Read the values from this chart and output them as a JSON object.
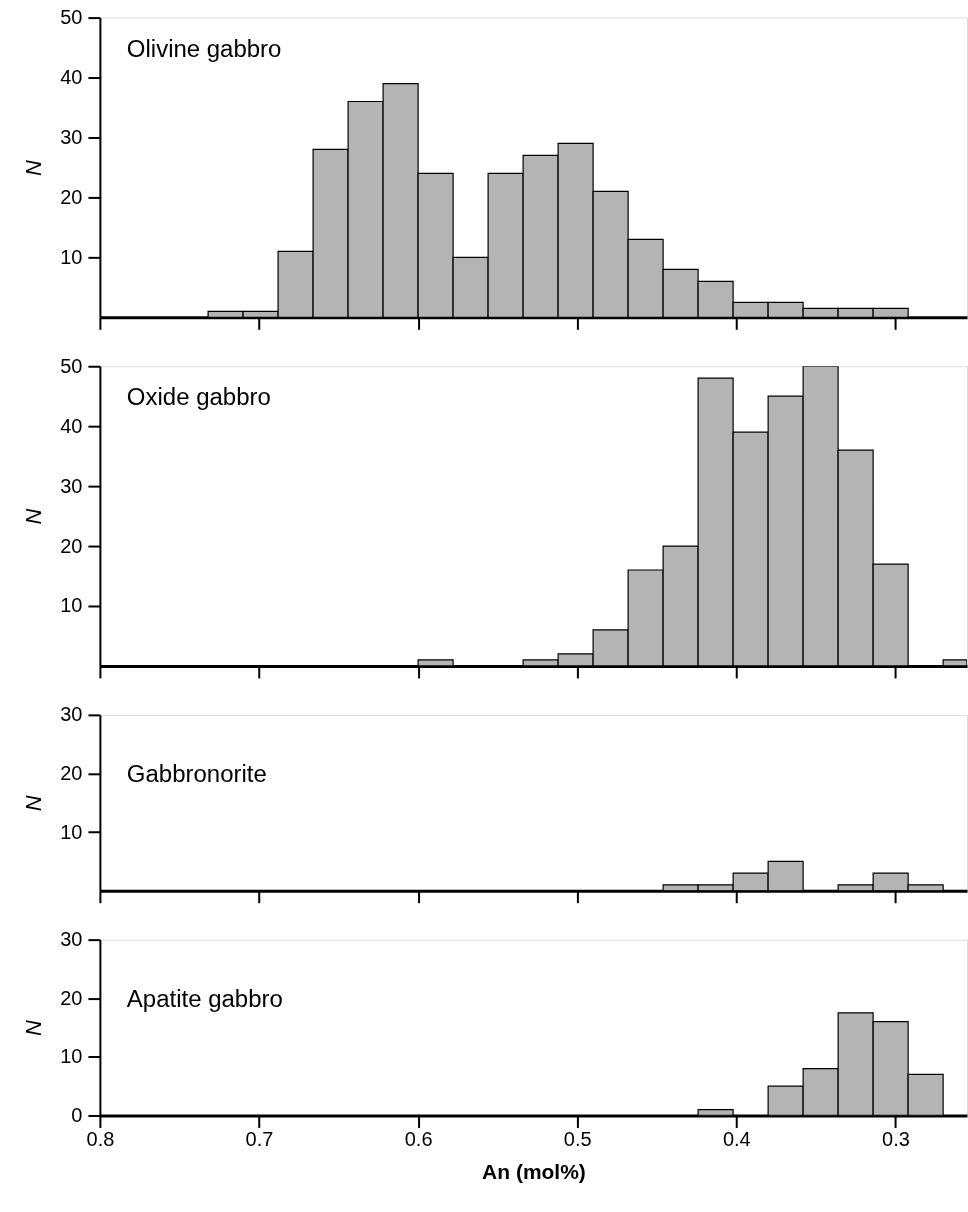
{
  "chart_data": [
    {
      "type": "histogram",
      "title": "Olivine gabbro",
      "ylabel": "N",
      "color": "#b4b4b4",
      "grid": false,
      "tick_labels": "y",
      "bins": [
        0.732,
        0.71,
        0.688,
        0.666,
        0.644,
        0.622,
        0.6,
        0.578,
        0.556,
        0.534,
        0.512,
        0.49,
        0.468,
        0.446,
        0.424,
        0.402,
        0.38,
        0.358,
        0.336,
        0.314,
        0.292
      ],
      "values": [
        1,
        1,
        11,
        28,
        36,
        39,
        24,
        10,
        24,
        27,
        29,
        21,
        13,
        8,
        6,
        2.5,
        2.5,
        1.5,
        1.5,
        1.5
      ],
      "xlim": [
        0.8,
        0.255
      ],
      "xticks": [
        0.8,
        0.7,
        0.6,
        0.5,
        0.4,
        0.3
      ],
      "ylim": [
        0,
        50
      ],
      "yticks": [
        10,
        20,
        30,
        40,
        50
      ]
    },
    {
      "type": "histogram",
      "title": "Oxide gabbro",
      "ylabel": "N",
      "color": "#b4b4b4",
      "grid": false,
      "tick_labels": "y",
      "bins": [
        0.6,
        0.578,
        0.534,
        0.512,
        0.49,
        0.468,
        0.446,
        0.424,
        0.402,
        0.38,
        0.358,
        0.336,
        0.314,
        0.292,
        0.27,
        0.255
      ],
      "values": [
        1,
        0,
        1,
        2,
        6,
        16,
        20,
        48,
        39,
        45,
        50,
        36,
        17,
        0,
        1
      ],
      "xlim": [
        0.8,
        0.255
      ],
      "xticks": [
        0.8,
        0.7,
        0.6,
        0.5,
        0.4,
        0.3
      ],
      "ylim": [
        0,
        50
      ],
      "yticks": [
        10,
        20,
        30,
        40,
        50
      ]
    },
    {
      "type": "histogram",
      "title": "Gabbronorite",
      "ylabel": "N",
      "color": "#b4b4b4",
      "grid": false,
      "tick_labels": "y",
      "bins": [
        0.446,
        0.424,
        0.402,
        0.38,
        0.358,
        0.336,
        0.314,
        0.292,
        0.27
      ],
      "values": [
        1,
        1,
        3,
        5,
        0,
        1,
        3,
        1
      ],
      "xlim": [
        0.8,
        0.255
      ],
      "xticks": [
        0.8,
        0.7,
        0.6,
        0.5,
        0.4,
        0.3
      ],
      "ylim": [
        0,
        30
      ],
      "yticks": [
        10,
        20,
        30
      ]
    },
    {
      "type": "histogram",
      "title": "Apatite gabbro",
      "ylabel": "N",
      "xlabel": "An (mol%)",
      "color": "#b4b4b4",
      "grid": false,
      "bins": [
        0.424,
        0.402,
        0.38,
        0.358,
        0.336,
        0.314,
        0.292,
        0.27
      ],
      "values": [
        1,
        0,
        5,
        8,
        17.5,
        16,
        7
      ],
      "xlim": [
        0.8,
        0.255
      ],
      "xticks": [
        0.8,
        0.7,
        0.6,
        0.5,
        0.4,
        0.3
      ],
      "ylim": [
        0,
        30
      ],
      "yticks": [
        0,
        10,
        20,
        30
      ]
    }
  ]
}
